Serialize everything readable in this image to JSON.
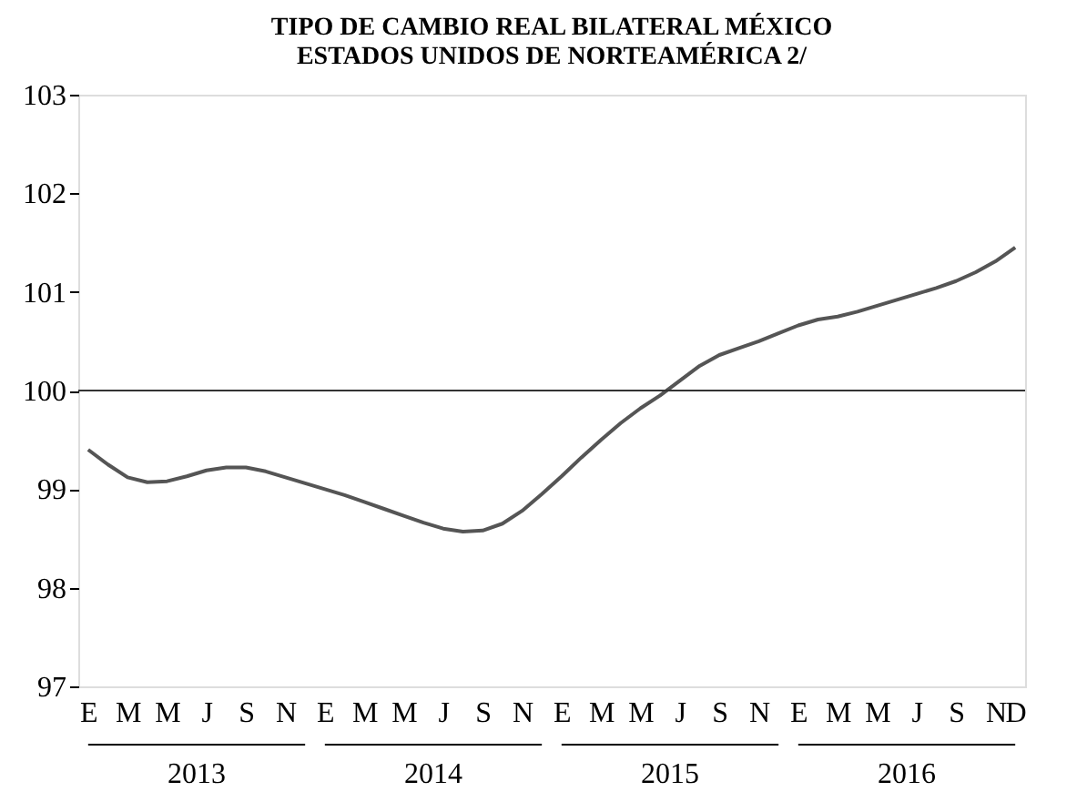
{
  "chart_data": {
    "type": "line",
    "title": "TIPO DE CAMBIO REAL BILATERAL MÉXICO\nESTADOS UNIDOS DE NORTEAMÉRICA 2/",
    "categories": [
      "E",
      null,
      "M",
      null,
      "M",
      null,
      "J",
      null,
      "S",
      null,
      "N",
      null,
      "E",
      null,
      "M",
      null,
      "M",
      null,
      "J",
      null,
      "S",
      null,
      "N",
      null,
      "E",
      null,
      "M",
      null,
      "M",
      null,
      "J",
      null,
      "S",
      null,
      "N",
      null,
      "E",
      null,
      "M",
      null,
      "M",
      null,
      "J",
      null,
      "S",
      null,
      "N",
      "D"
    ],
    "series": [
      {
        "color": "#555555",
        "values": [
          99.4,
          99.25,
          99.12,
          99.07,
          99.08,
          99.13,
          99.19,
          99.22,
          99.22,
          99.18,
          99.12,
          99.06,
          99.0,
          98.94,
          98.87,
          98.8,
          98.73,
          98.66,
          98.6,
          98.57,
          98.58,
          98.65,
          98.78,
          98.95,
          99.13,
          99.32,
          99.5,
          99.67,
          99.82,
          99.95,
          100.1,
          100.25,
          100.36,
          100.43,
          100.5,
          100.58,
          100.66,
          100.72,
          100.75,
          100.8,
          100.86,
          100.92,
          100.98,
          101.04,
          101.11,
          101.2,
          101.31,
          101.45
        ]
      }
    ],
    "ylim": [
      97,
      103
    ],
    "yticks": [
      97,
      98,
      99,
      100,
      101,
      102,
      103
    ],
    "grid": false,
    "marker": "none",
    "line_style": "solid",
    "ref_lines": [
      {
        "axis": "y",
        "value": 100,
        "color": "#333333"
      }
    ],
    "annotations": [
      "2013",
      "2014",
      "2015",
      "2016"
    ]
  }
}
